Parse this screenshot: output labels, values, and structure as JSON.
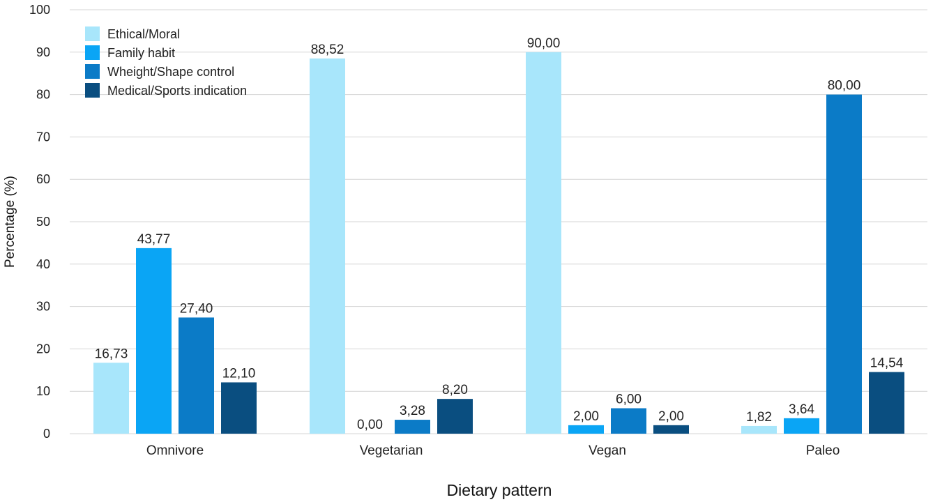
{
  "chart_data": {
    "type": "bar",
    "xlabel": "Dietary pattern",
    "ylabel": "Percentage (%)",
    "ylim": [
      0,
      100
    ],
    "yticks": [
      0,
      10,
      20,
      30,
      40,
      50,
      60,
      70,
      80,
      90,
      100
    ],
    "grid": true,
    "legend_position": "top-left",
    "categories": [
      "Omnivore",
      "Vegetarian",
      "Vegan",
      "Paleo"
    ],
    "series": [
      {
        "name": "Ethical/Moral",
        "color": "#a8e6fb",
        "values": [
          16.73,
          88.52,
          90.0,
          1.82
        ],
        "labels": [
          "16,73",
          "88,52",
          "90,00",
          "1,82"
        ]
      },
      {
        "name": "Family habit",
        "color": "#0aa5f5",
        "values": [
          43.77,
          0.0,
          2.0,
          3.64
        ],
        "labels": [
          "43,77",
          "0,00",
          "2,00",
          "3,64"
        ]
      },
      {
        "name": "Wheight/Shape control",
        "color": "#0b7bc7",
        "values": [
          27.4,
          3.28,
          6.0,
          80.0
        ],
        "labels": [
          "27,40",
          "3,28",
          "6,00",
          "80,00"
        ]
      },
      {
        "name": "Medical/Sports indication",
        "color": "#0a4e80",
        "values": [
          12.1,
          8.2,
          2.0,
          14.54
        ],
        "labels": [
          "12,10",
          "8,20",
          "2,00",
          "14,54"
        ]
      }
    ]
  }
}
